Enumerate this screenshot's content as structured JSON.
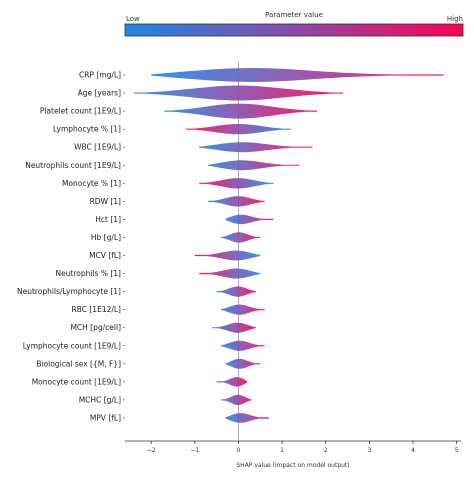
{
  "colorbar": {
    "title": "Parameter value",
    "low_label": "Low",
    "high_label": "High",
    "low_color": "#1e88e5",
    "high_color": "#ff0052"
  },
  "chart_data": {
    "type": "scatter",
    "subtype": "shap-beeswarm",
    "title": "",
    "xlabel": "SHAP value (impact on model output)",
    "ylabel": "",
    "xlim": [
      -2.6,
      5.1
    ],
    "xticks": [
      -2,
      -1,
      0,
      1,
      2,
      3,
      4,
      5
    ],
    "grid": false,
    "zero_line": true,
    "features": [
      {
        "name": "CRP [mg/L]",
        "min": -2.0,
        "max": 4.7
      },
      {
        "name": "Age [years]",
        "min": -2.4,
        "max": 2.4
      },
      {
        "name": "Platelet count [1E9/L]",
        "min": -1.7,
        "max": 1.8
      },
      {
        "name": "Lymphocyte % [1]",
        "min": -1.2,
        "max": 1.2
      },
      {
        "name": "WBC [1E9/L]",
        "min": -0.9,
        "max": 1.7
      },
      {
        "name": "Neutrophils count [1E9/L]",
        "min": -0.7,
        "max": 1.4
      },
      {
        "name": "Monocyte % [1]",
        "min": -0.9,
        "max": 0.8
      },
      {
        "name": "RDW [1]",
        "min": -0.7,
        "max": 0.6
      },
      {
        "name": "Hct [1]",
        "min": -0.3,
        "max": 0.8
      },
      {
        "name": "Hb [g/L]",
        "min": -0.4,
        "max": 0.5
      },
      {
        "name": "MCV [fL]",
        "min": -1.0,
        "max": 0.5
      },
      {
        "name": "Neutrophils % [1]",
        "min": -0.9,
        "max": 0.5
      },
      {
        "name": "Neutrophils/Lymphocyte [1]",
        "min": -0.5,
        "max": 0.4
      },
      {
        "name": "RBC [1E12/L]",
        "min": -0.4,
        "max": 0.6
      },
      {
        "name": "MCH [pg/cell]",
        "min": -0.6,
        "max": 0.4
      },
      {
        "name": "Lymphocyte count [1E9/L]",
        "min": -0.4,
        "max": 0.6
      },
      {
        "name": "Biological sex [{M, F}]",
        "min": -0.3,
        "max": 0.5
      },
      {
        "name": "Monocyte count [1E9/L]",
        "min": -0.5,
        "max": 0.2
      },
      {
        "name": "MCHC [g/L]",
        "min": -0.4,
        "max": 0.3
      },
      {
        "name": "MPV [fL]",
        "min": -0.3,
        "max": 0.7
      }
    ],
    "color_scale": "low value = blue, high value = red"
  }
}
